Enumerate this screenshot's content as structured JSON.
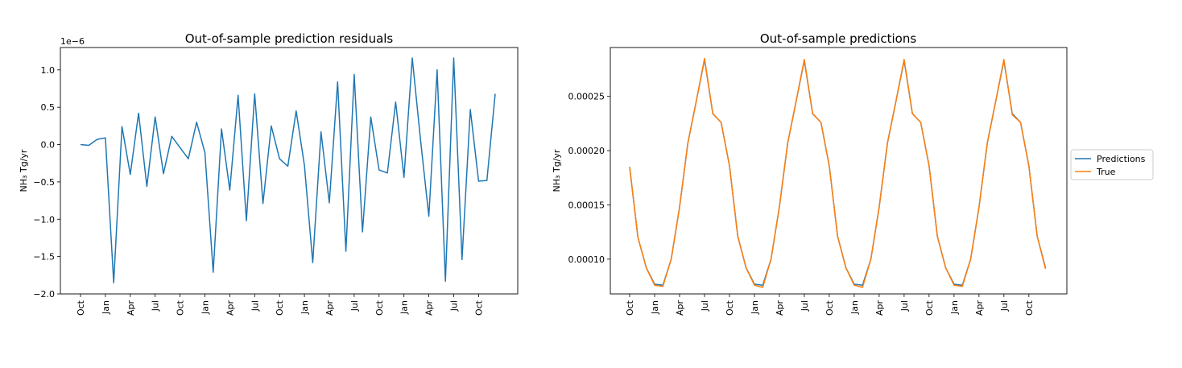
{
  "chart_data": [
    {
      "type": "line",
      "title": "Out-of-sample prediction residuals",
      "xlabel": "",
      "ylabel": "NH₃ Tg/yr",
      "offset_text": "1e−6",
      "ylim": [
        -2.0,
        1.3
      ],
      "yticks": [
        -2.0,
        -1.5,
        -1.0,
        -0.5,
        0.0,
        0.5,
        1.0
      ],
      "ytick_labels": [
        "−2.0",
        "−1.5",
        "−1.0",
        "−0.5",
        "0.0",
        "0.5",
        "1.0"
      ],
      "x_tick_labels": [
        "Oct",
        "Jan",
        "Apr",
        "Jul",
        "Oct",
        "Jan",
        "Apr",
        "Jul",
        "Oct",
        "Jan",
        "Apr",
        "Jul",
        "Oct",
        "Jan",
        "Apr",
        "Jul",
        "Oct"
      ],
      "x_start": "Oct",
      "series": [
        {
          "color": "#1f77b4",
          "values": [
            0.0,
            -0.01,
            0.07,
            0.09,
            -1.85,
            0.24,
            -0.4,
            0.42,
            -0.56,
            0.37,
            -0.39,
            0.11,
            -0.04,
            -0.19,
            0.3,
            -0.11,
            -1.71,
            0.21,
            -0.61,
            0.66,
            -1.02,
            0.68,
            -0.79,
            0.25,
            -0.19,
            -0.29,
            0.45,
            -0.28,
            -1.58,
            0.17,
            -0.78,
            0.84,
            -1.43,
            0.94,
            -1.17,
            0.37,
            -0.34,
            -0.38,
            0.57,
            -0.44,
            1.16,
            0.06,
            -0.96,
            1.0,
            -1.83,
            1.16,
            -1.54,
            0.47,
            -0.49,
            -0.48,
            0.68
          ]
        }
      ]
    },
    {
      "type": "line",
      "title": "Out-of-sample predictions",
      "xlabel": "",
      "ylabel": "NH₃ Tg/yr",
      "ylim": [
        6.8e-05,
        0.000295
      ],
      "yticks": [
        0.0001,
        0.00015,
        0.0002,
        0.00025
      ],
      "ytick_labels": [
        "0.00010",
        "0.00015",
        "0.00020",
        "0.00025"
      ],
      "x_tick_labels": [
        "Oct",
        "Jan",
        "Apr",
        "Jul",
        "Oct",
        "Jan",
        "Apr",
        "Jul",
        "Oct",
        "Jan",
        "Apr",
        "Jul",
        "Oct",
        "Jan",
        "Apr",
        "Jul",
        "Oct"
      ],
      "legend_position": "right-outside",
      "series": [
        {
          "name": "Predictions",
          "color": "#1f77b4",
          "values": [
            0.000185,
            0.00012,
            9.2e-05,
            7.7e-05,
            7.6e-05,
            0.0001,
            0.000148,
            0.000207,
            0.000245,
            0.000284,
            0.000234,
            0.000226,
            0.000186,
            0.000121,
            9.2e-05,
            7.7e-05,
            7.6e-05,
            0.0001,
            0.000148,
            0.000207,
            0.000245,
            0.000283,
            0.000234,
            0.000226,
            0.000186,
            0.000121,
            9.2e-05,
            7.7e-05,
            7.6e-05,
            0.0001,
            0.000148,
            0.000207,
            0.000245,
            0.000283,
            0.000234,
            0.000226,
            0.000186,
            0.000121,
            9.2e-05,
            7.7e-05,
            7.6e-05,
            0.0001,
            0.000148,
            0.000207,
            0.000245,
            0.000283,
            0.000234,
            0.000226,
            0.000186,
            0.000121,
            9.2e-05
          ]
        },
        {
          "name": "True",
          "color": "#ff7f0e",
          "values": [
            0.000185,
            0.00012,
            9.2e-05,
            7.6e-05,
            7.5e-05,
            0.0001,
            0.000148,
            0.000207,
            0.000245,
            0.000285,
            0.000234,
            0.000226,
            0.000186,
            0.000121,
            9.2e-05,
            7.6e-05,
            7.4e-05,
            0.0001,
            0.000148,
            0.000207,
            0.000245,
            0.000284,
            0.000234,
            0.000226,
            0.000186,
            0.000121,
            9.2e-05,
            7.6e-05,
            7.4e-05,
            0.0001,
            0.000148,
            0.000207,
            0.000245,
            0.000284,
            0.000234,
            0.000226,
            0.000186,
            0.000121,
            9.2e-05,
            7.6e-05,
            7.5e-05,
            0.0001,
            0.000148,
            0.000207,
            0.000245,
            0.000284,
            0.000233,
            0.000226,
            0.000186,
            0.000121,
            9.1e-05
          ]
        }
      ]
    }
  ]
}
